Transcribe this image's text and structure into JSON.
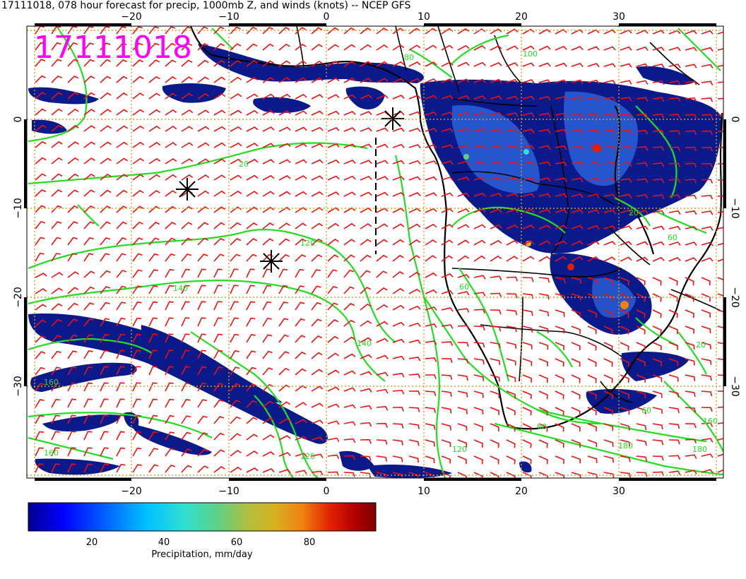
{
  "header": {
    "title": "17111018, 078 hour forecast for precip, 1000mb Z, and winds (knots) -- NCEP GFS"
  },
  "stamp": "17111018",
  "axes": {
    "lon_labels": [
      "−20",
      "−10",
      "0",
      "10",
      "20",
      "30"
    ],
    "lat_labels": [
      "0",
      "−10",
      "−20",
      "−30"
    ]
  },
  "contour_labels": [
    "120",
    "140",
    "140",
    "160",
    "160",
    "120",
    "20",
    "60",
    "60",
    "60",
    "180",
    "160",
    "180",
    "80",
    "20",
    "20",
    "60",
    "120",
    "100"
  ],
  "colorbar": {
    "ticks": [
      "20",
      "40",
      "60",
      "80"
    ],
    "label": "Precipitation, mm/day",
    "min": 0,
    "max": 100,
    "colors": [
      "#00008f",
      "#0000ff",
      "#0060ff",
      "#00c0ff",
      "#30e0d0",
      "#60d080",
      "#b0c040",
      "#d8b020",
      "#f08010",
      "#e02000",
      "#b00000",
      "#800000"
    ]
  },
  "colors": {
    "contour": "#22dd22",
    "wind": "#ee1111",
    "stamp": "#ff00ff",
    "grid": "#d4a020",
    "coast": "#000000",
    "precip_dark": "#0a1a8a",
    "precip_mid": "#2a62d8"
  }
}
